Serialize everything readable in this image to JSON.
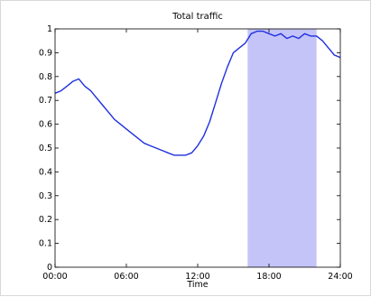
{
  "chart_data": {
    "type": "line",
    "title": "Total traffic",
    "xlabel": "Time",
    "ylabel": "",
    "xlim": [
      0,
      24
    ],
    "ylim": [
      0,
      1
    ],
    "x_ticks": [
      0,
      6,
      12,
      18,
      24
    ],
    "x_tick_labels": [
      "00:00",
      "06:00",
      "12:00",
      "18:00",
      "24:00"
    ],
    "y_ticks": [
      0,
      0.1,
      0.2,
      0.3,
      0.4,
      0.5,
      0.6,
      0.7,
      0.8,
      0.9,
      1
    ],
    "y_tick_labels": [
      "0",
      "0.1",
      "0.2",
      "0.3",
      "0.4",
      "0.5",
      "0.6",
      "0.7",
      "0.8",
      "0.9",
      "1"
    ],
    "grid": false,
    "highlight": {
      "x_start": 16.2,
      "x_end": 22.0,
      "color": "#c4c4f8"
    },
    "series": [
      {
        "color": "#1f2fe0",
        "x": [
          0,
          0.5,
          1,
          1.5,
          2,
          2.5,
          3,
          3.5,
          4,
          4.5,
          5,
          5.5,
          6,
          6.5,
          7,
          7.5,
          8,
          8.5,
          9,
          9.5,
          10,
          10.5,
          11,
          11.5,
          12,
          12.5,
          13,
          13.5,
          14,
          14.5,
          15,
          15.5,
          16,
          16.5,
          17,
          17.5,
          18,
          18.5,
          19,
          19.5,
          20,
          20.5,
          21,
          21.5,
          22,
          22.5,
          23,
          23.5,
          24
        ],
        "y": [
          0.73,
          0.74,
          0.76,
          0.78,
          0.79,
          0.76,
          0.74,
          0.71,
          0.68,
          0.65,
          0.62,
          0.6,
          0.58,
          0.56,
          0.54,
          0.52,
          0.51,
          0.5,
          0.49,
          0.48,
          0.47,
          0.47,
          0.47,
          0.48,
          0.51,
          0.55,
          0.61,
          0.69,
          0.77,
          0.84,
          0.9,
          0.92,
          0.94,
          0.98,
          0.99,
          0.99,
          0.98,
          0.97,
          0.98,
          0.96,
          0.97,
          0.96,
          0.98,
          0.97,
          0.97,
          0.95,
          0.92,
          0.89,
          0.88
        ]
      }
    ]
  }
}
